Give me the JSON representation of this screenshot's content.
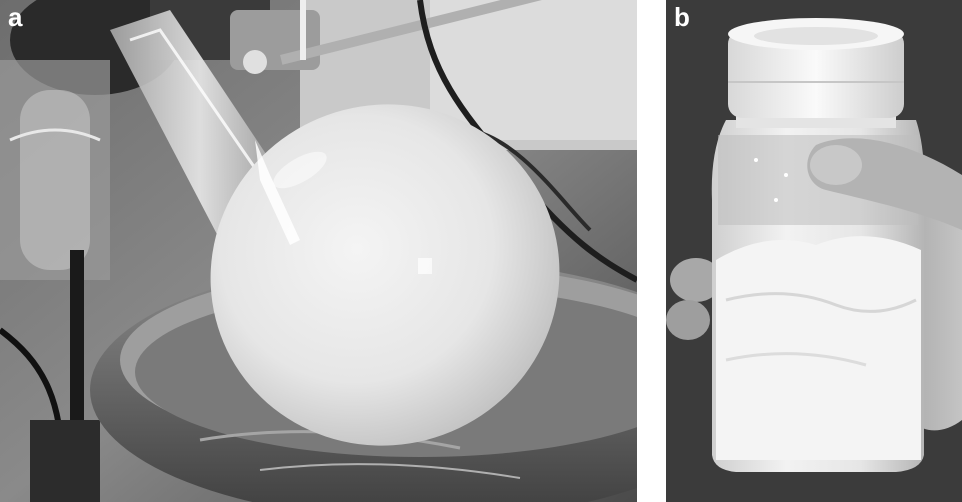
{
  "figure": {
    "panels": [
      {
        "label": "a"
      },
      {
        "label": "b"
      }
    ]
  }
}
